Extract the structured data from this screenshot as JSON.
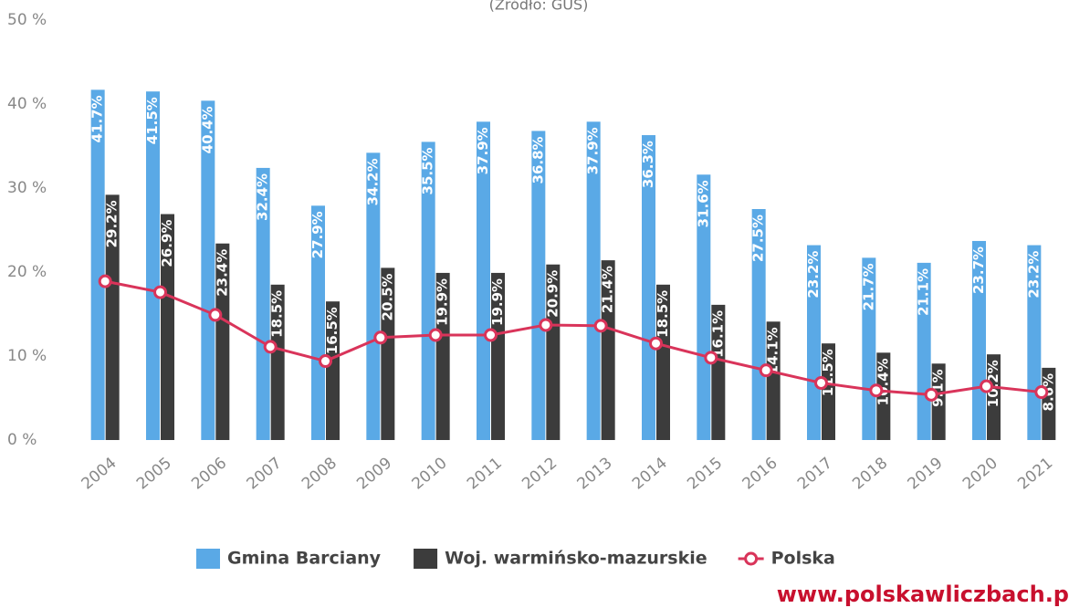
{
  "chart_data": {
    "type": "bar_line",
    "title": "(Źródło: GUS)",
    "categories": [
      "2004",
      "2005",
      "2006",
      "2007",
      "2008",
      "2009",
      "2010",
      "2011",
      "2012",
      "2013",
      "2014",
      "2015",
      "2016",
      "2017",
      "2018",
      "2019",
      "2020",
      "2021"
    ],
    "series": [
      {
        "name": "Gmina Barciany",
        "color": "#5aa9e6",
        "kind": "bar",
        "values": [
          41.7,
          41.5,
          40.4,
          32.4,
          27.9,
          34.2,
          35.5,
          37.9,
          36.8,
          37.9,
          36.3,
          31.6,
          27.5,
          23.2,
          21.7,
          21.1,
          23.7,
          23.2
        ],
        "value_labels": [
          "41.7%",
          "41.5%",
          "40.4%",
          "32.4%",
          "27.9%",
          "34.2%",
          "35.5%",
          "37.9%",
          "36.8%",
          "37.9%",
          "36.3%",
          "31.6%",
          "27.5%",
          "23.2%",
          "21.7%",
          "21.1%",
          "23.7%",
          "23.2%"
        ]
      },
      {
        "name": "Woj. warmińsko-mazurskie",
        "color": "#3c3c3c",
        "kind": "bar",
        "values": [
          29.2,
          26.9,
          23.4,
          18.5,
          16.5,
          20.5,
          19.9,
          19.9,
          20.9,
          21.4,
          18.5,
          16.1,
          14.1,
          11.5,
          10.4,
          9.1,
          10.2,
          8.6
        ],
        "value_labels": [
          "29.2%",
          "26.9%",
          "23.4%",
          "18.5%",
          "16.5%",
          "20.5%",
          "19.9%",
          "19.9%",
          "20.9%",
          "21.4%",
          "18.5%",
          "16.1%",
          "14.1%",
          "11.5%",
          "10.4%",
          "9.1%",
          "10.2%",
          "8.6%"
        ]
      },
      {
        "name": "Polska",
        "color": "#d9345a",
        "kind": "line",
        "values": [
          18.9,
          17.6,
          14.9,
          11.1,
          9.4,
          12.2,
          12.5,
          12.5,
          13.7,
          13.6,
          11.5,
          9.8,
          8.3,
          6.8,
          5.9,
          5.4,
          6.4,
          5.7
        ]
      }
    ],
    "ylim": [
      0,
      50
    ],
    "yticks": [
      {
        "value": 0,
        "label": "0 %"
      },
      {
        "value": 10,
        "label": "10 %"
      },
      {
        "value": 20,
        "label": "20 %"
      },
      {
        "value": 30,
        "label": "30 %"
      },
      {
        "value": 40,
        "label": "40 %"
      },
      {
        "value": 50,
        "label": "50 %"
      }
    ],
    "grid": false,
    "watermark": "www.polskawliczbach.p"
  }
}
